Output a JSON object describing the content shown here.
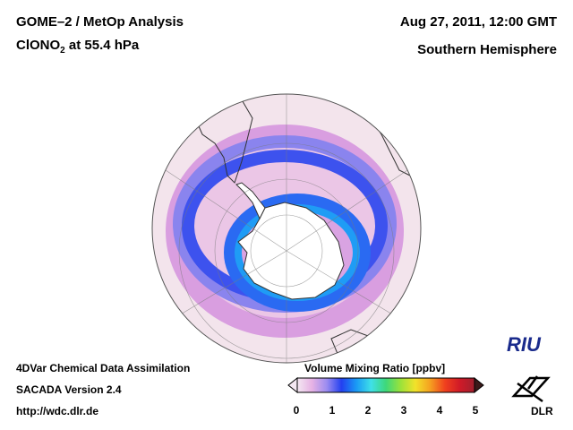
{
  "header": {
    "title": "GOME–2 / MetOp Analysis",
    "species_prefix": "ClONO",
    "species_sub": "2",
    "species_suffix": " at 55.4 hPa",
    "datetime": "Aug 27, 2011, 12:00 GMT",
    "region": "Southern Hemisphere"
  },
  "footer": {
    "system": "4DVar Chemical Data Assimilation",
    "version": "SACADA Version 2.4",
    "url": "http://wdc.dlr.de"
  },
  "colorbar": {
    "title": "Volume Mixing Ratio [ppbv]",
    "ticks": [
      "0",
      "1",
      "2",
      "3",
      "4",
      "5"
    ],
    "colors": [
      "#f4e8f2",
      "#e6b2e4",
      "#9b8cf0",
      "#2340f0",
      "#1a9af5",
      "#3fe0e8",
      "#3ed87a",
      "#9be23a",
      "#f2e22a",
      "#f5a020",
      "#f0401e",
      "#d01a28",
      "#a0202e"
    ]
  },
  "logos": {
    "riu": "RIU",
    "dlr": "DLR"
  },
  "colors": {
    "background_field": "#f0dde8",
    "low_ring": "#e6b2e4",
    "mid_ring": "#5a6cf0",
    "high_ring": "#1f8af5",
    "antarctica": "#ffffff"
  }
}
